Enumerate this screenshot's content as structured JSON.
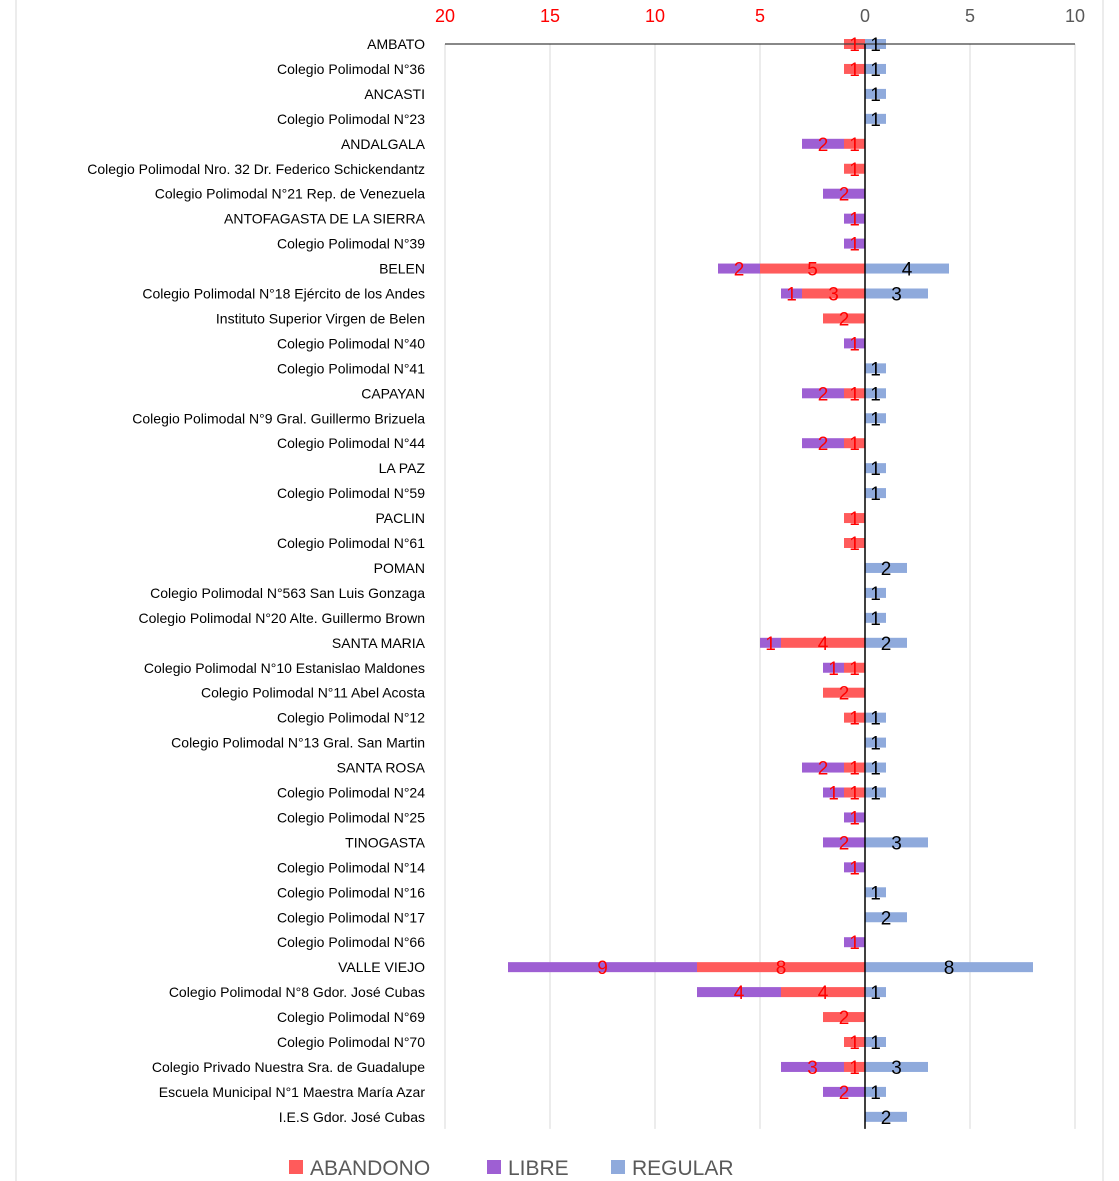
{
  "chart_data": {
    "type": "bar",
    "orientation": "horizontal",
    "stacked": true,
    "title": "",
    "xlabel": "",
    "ylabel": "",
    "xlim": [
      -20,
      10
    ],
    "x_ticks": [
      -20,
      -15,
      -10,
      -5,
      0,
      5,
      10
    ],
    "x_tick_labels": [
      "20",
      "15",
      "10",
      "5",
      "0",
      "5",
      "10"
    ],
    "grid": "vertical",
    "legend_position": "bottom",
    "categories": [
      "AMBATO",
      "Colegio Polimodal N°36",
      "ANCASTI",
      "Colegio Polimodal N°23",
      "ANDALGALA",
      "Colegio Polimodal Nro. 32 Dr. Federico Schickendantz",
      "Colegio Polimodal N°21 Rep. de Venezuela",
      "ANTOFAGASTA DE LA SIERRA",
      "Colegio Polimodal N°39",
      "BELEN",
      "Colegio Polimodal N°18 Ejército de los Andes",
      "Instituto Superior Virgen de Belen",
      "Colegio Polimodal N°40",
      "Colegio Polimodal N°41",
      "CAPAYAN",
      "Colegio Polimodal N°9 Gral. Guillermo Brizuela",
      "Colegio Polimodal N°44",
      "LA PAZ",
      "Colegio Polimodal N°59",
      "PACLIN",
      "Colegio Polimodal N°61",
      "POMAN",
      "Colegio Polimodal N°563 San Luis Gonzaga",
      "Colegio Polimodal N°20 Alte. Guillermo Brown",
      "SANTA MARIA",
      "Colegio Polimodal N°10 Estanislao Maldones",
      "Colegio Polimodal N°11 Abel Acosta",
      "Colegio Polimodal N°12",
      "Colegio Polimodal N°13 Gral. San Martin",
      "SANTA ROSA",
      "Colegio Polimodal N°24",
      "Colegio Polimodal N°25",
      "TINOGASTA",
      "Colegio Polimodal N°14",
      "Colegio Polimodal N°16",
      "Colegio Polimodal N°17",
      "Colegio Polimodal N°66",
      "VALLE VIEJO",
      "Colegio Polimodal N°8 Gdor. José Cubas",
      "Colegio Polimodal N°69",
      "Colegio Polimodal N°70",
      "Colegio Privado Nuestra Sra. de Guadalupe",
      "Escuela Municipal N°1 Maestra María Azar",
      "I.E.S Gdor. José Cubas"
    ],
    "series": [
      {
        "name": "ABANDONO",
        "color": "#ff5b5b",
        "label_color": "#ff0000",
        "values": [
          -1,
          -1,
          0,
          0,
          -1,
          -1,
          0,
          0,
          0,
          -5,
          -3,
          -2,
          0,
          0,
          -1,
          0,
          -1,
          0,
          0,
          -1,
          -1,
          0,
          0,
          0,
          -4,
          -1,
          -2,
          -1,
          0,
          -1,
          -1,
          0,
          0,
          0,
          0,
          0,
          0,
          -8,
          -4,
          -2,
          -1,
          -1,
          0,
          0
        ]
      },
      {
        "name": "LIBRE",
        "color": "#9e5fd3",
        "label_color": "#ff0000",
        "values": [
          0,
          0,
          0,
          0,
          -2,
          0,
          -2,
          -1,
          -1,
          -2,
          -1,
          0,
          -1,
          0,
          -2,
          0,
          -2,
          0,
          0,
          0,
          0,
          0,
          0,
          0,
          -1,
          -1,
          0,
          0,
          0,
          -2,
          -1,
          -1,
          -2,
          -1,
          0,
          0,
          -1,
          -9,
          -4,
          0,
          0,
          -3,
          -2,
          0
        ]
      },
      {
        "name": "REGULAR",
        "color": "#8faadc",
        "label_color": "#000000",
        "values": [
          1,
          1,
          1,
          1,
          0,
          0,
          0,
          0,
          0,
          4,
          3,
          0,
          0,
          1,
          1,
          1,
          0,
          1,
          1,
          0,
          0,
          2,
          1,
          1,
          2,
          0,
          0,
          1,
          1,
          1,
          1,
          0,
          3,
          0,
          1,
          2,
          0,
          8,
          1,
          0,
          1,
          3,
          1,
          2
        ]
      }
    ]
  }
}
